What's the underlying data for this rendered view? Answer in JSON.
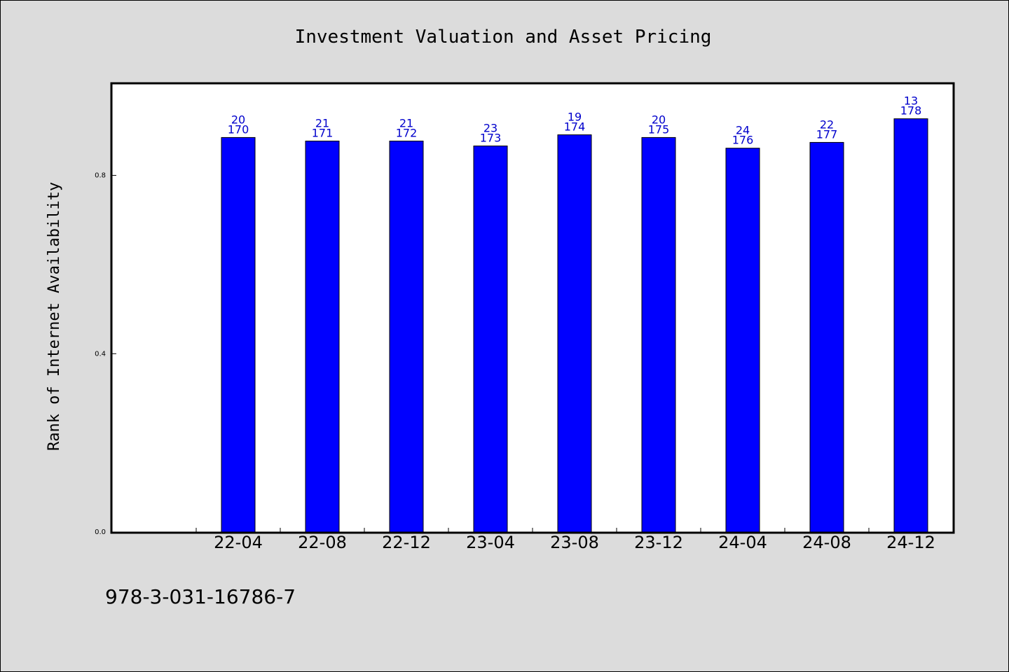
{
  "chart_data": {
    "type": "bar",
    "title": "Investment Valuation and Asset Pricing",
    "ylabel": "Rank of Internet Availability",
    "xlabel": "",
    "categories": [
      "22-04",
      "22-08",
      "22-12",
      "23-04",
      "23-08",
      "23-12",
      "24-04",
      "24-08",
      "24-12"
    ],
    "values": [
      0.885,
      0.877,
      0.877,
      0.866,
      0.891,
      0.885,
      0.861,
      0.874,
      0.927
    ],
    "label_top": [
      "20",
      "21",
      "21",
      "23",
      "19",
      "20",
      "24",
      "22",
      "13"
    ],
    "label_bottom": [
      "170",
      "171",
      "172",
      "173",
      "174",
      "175",
      "176",
      "177",
      "178"
    ],
    "yticks": [
      "0.0",
      "0.4",
      "0.8"
    ],
    "ylim": [
      0,
      1.005
    ],
    "bar_color": "#0000ff",
    "label_color": "#0000cc",
    "grid": false,
    "legend": "none"
  },
  "footer": {
    "isbn": "978-3-031-16786-7"
  }
}
